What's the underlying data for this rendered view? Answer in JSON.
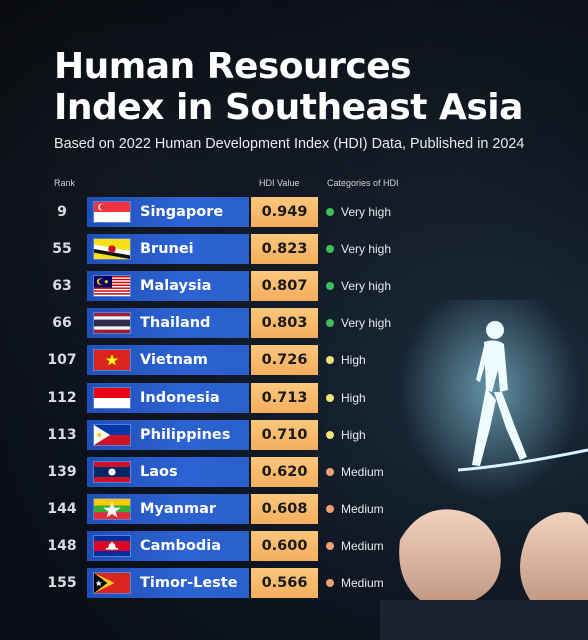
{
  "title_line1": "Human Resources",
  "title_line2": "Index in Southeast Asia",
  "subtitle": "Based on 2022 Human Development Index (HDI) Data, Published in 2024",
  "headers": {
    "rank": "Rank",
    "hdi": "HDI Value",
    "category": "Categories of HDI"
  },
  "colors": {
    "very_high": "#3fbf5a",
    "high": "#f2e27a",
    "medium": "#f0a070",
    "bar": "#2c63d2",
    "hdi_cell": "#f6b668"
  },
  "rows": [
    {
      "rank": "9",
      "country": "Singapore",
      "hdi": "0.949",
      "category": "Very high",
      "level": "very_high",
      "flag": "singapore-flag-icon"
    },
    {
      "rank": "55",
      "country": "Brunei",
      "hdi": "0.823",
      "category": "Very high",
      "level": "very_high",
      "flag": "brunei-flag-icon"
    },
    {
      "rank": "63",
      "country": "Malaysia",
      "hdi": "0.807",
      "category": "Very high",
      "level": "very_high",
      "flag": "malaysia-flag-icon"
    },
    {
      "rank": "66",
      "country": "Thailand",
      "hdi": "0.803",
      "category": "Very high",
      "level": "very_high",
      "flag": "thailand-flag-icon"
    },
    {
      "rank": "107",
      "country": "Vietnam",
      "hdi": "0.726",
      "category": "High",
      "level": "high",
      "flag": "vietnam-flag-icon"
    },
    {
      "rank": "112",
      "country": "Indonesia",
      "hdi": "0.713",
      "category": "High",
      "level": "high",
      "flag": "indonesia-flag-icon"
    },
    {
      "rank": "113",
      "country": "Philippines",
      "hdi": "0.710",
      "category": "High",
      "level": "high",
      "flag": "philippines-flag-icon"
    },
    {
      "rank": "139",
      "country": "Laos",
      "hdi": "0.620",
      "category": "Medium",
      "level": "medium",
      "flag": "laos-flag-icon"
    },
    {
      "rank": "144",
      "country": "Myanmar",
      "hdi": "0.608",
      "category": "Medium",
      "level": "medium",
      "flag": "myanmar-flag-icon"
    },
    {
      "rank": "148",
      "country": "Cambodia",
      "hdi": "0.600",
      "category": "Medium",
      "level": "medium",
      "flag": "cambodia-flag-icon"
    },
    {
      "rank": "155",
      "country": "Timor-Leste",
      "hdi": "0.566",
      "category": "Medium",
      "level": "medium",
      "flag": "timor-leste-flag-icon"
    }
  ]
}
